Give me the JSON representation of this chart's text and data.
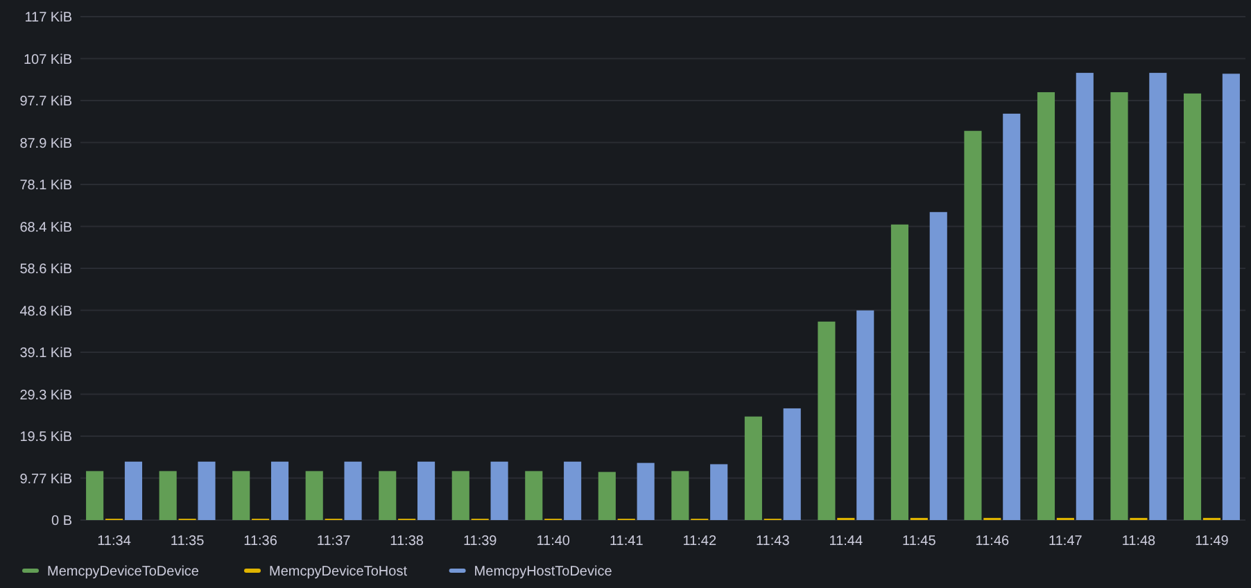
{
  "chart_data": {
    "type": "bar",
    "categories": [
      "11:34",
      "11:35",
      "11:36",
      "11:37",
      "11:38",
      "11:39",
      "11:40",
      "11:41",
      "11:42",
      "11:43",
      "11:44",
      "11:45",
      "11:46",
      "11:47",
      "11:48",
      "11:49"
    ],
    "series": [
      {
        "name": "MemcpyDeviceToDevice",
        "color": "#629e55",
        "values": [
          11.4,
          11.4,
          11.4,
          11.4,
          11.4,
          11.4,
          11.4,
          11.2,
          11.4,
          24.1,
          46.2,
          68.8,
          90.6,
          99.6,
          99.6,
          99.3
        ]
      },
      {
        "name": "MemcpyDeviceToHost",
        "color": "#e0b400",
        "values": [
          0.3,
          0.3,
          0.3,
          0.3,
          0.3,
          0.3,
          0.3,
          0.3,
          0.3,
          0.3,
          0.5,
          0.5,
          0.5,
          0.5,
          0.5,
          0.5
        ]
      },
      {
        "name": "MemcpyHostToDevice",
        "color": "#7598d6",
        "values": [
          13.6,
          13.6,
          13.6,
          13.6,
          13.6,
          13.6,
          13.6,
          13.3,
          13.0,
          26.0,
          48.8,
          71.7,
          94.6,
          104.1,
          104.1,
          103.9
        ]
      }
    ],
    "ylim": [
      0,
      117.1875
    ],
    "yticks": [
      {
        "value": 0,
        "label": "0 B"
      },
      {
        "value": 9.765625,
        "label": "9.77 KiB"
      },
      {
        "value": 19.53125,
        "label": "19.5 KiB"
      },
      {
        "value": 29.296875,
        "label": "29.3 KiB"
      },
      {
        "value": 39.0625,
        "label": "39.1 KiB"
      },
      {
        "value": 48.828125,
        "label": "48.8 KiB"
      },
      {
        "value": 58.59375,
        "label": "58.6 KiB"
      },
      {
        "value": 68.359375,
        "label": "68.4 KiB"
      },
      {
        "value": 78.125,
        "label": "78.1 KiB"
      },
      {
        "value": 87.890625,
        "label": "87.9 KiB"
      },
      {
        "value": 97.65625,
        "label": "97.7 KiB"
      },
      {
        "value": 107.421875,
        "label": "107 KiB"
      },
      {
        "value": 117.1875,
        "label": "117 KiB"
      }
    ],
    "grid": "y",
    "legend": "bottom left"
  }
}
